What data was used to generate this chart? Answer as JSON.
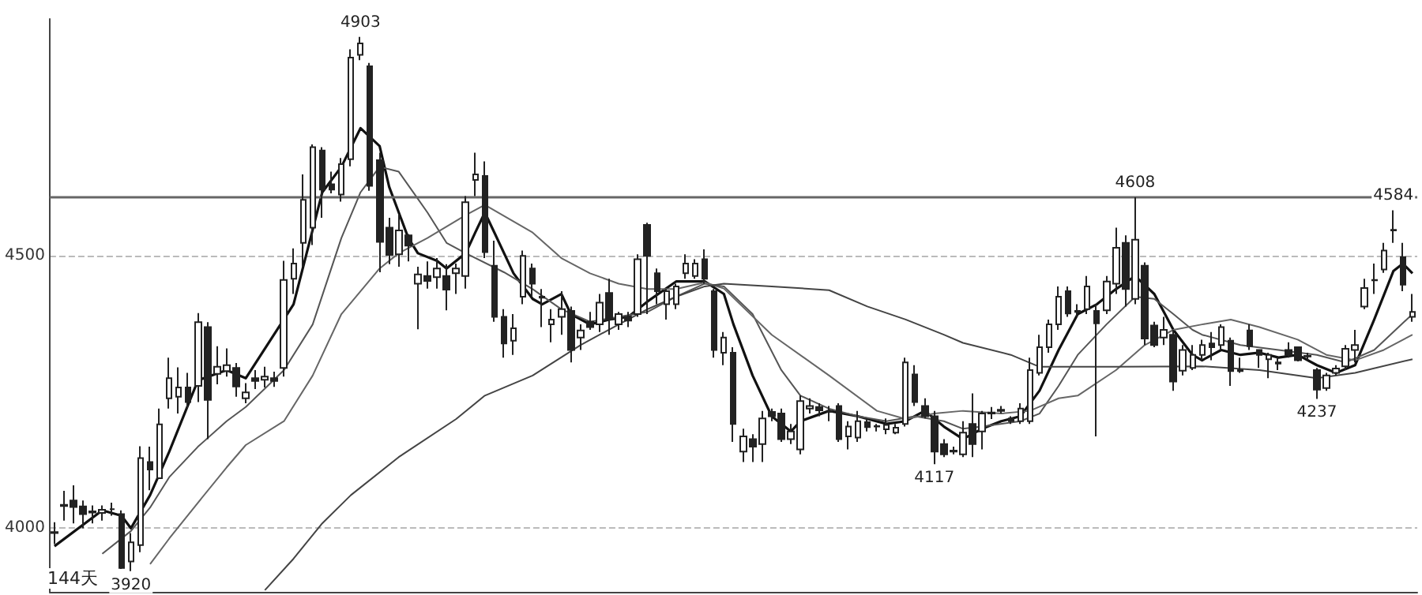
{
  "chart_data": {
    "type": "candlestick",
    "categories": [
      null,
      null,
      null,
      null,
      null,
      null,
      null,
      null,
      null,
      null,
      null,
      null,
      null,
      null,
      null,
      null,
      null,
      null,
      null,
      null,
      null,
      null,
      null,
      null,
      null,
      null,
      null,
      null,
      null,
      null,
      null,
      null,
      null,
      null,
      null,
      null,
      null,
      null,
      null,
      null,
      null,
      null,
      null,
      null,
      null,
      null,
      null,
      null,
      null,
      null,
      null,
      null,
      null,
      null,
      null,
      null,
      null,
      null,
      null,
      null,
      null,
      null,
      null,
      null,
      null,
      null,
      null,
      null,
      null,
      null,
      null,
      null,
      null,
      null,
      null,
      null,
      null,
      null,
      null,
      null,
      null,
      null,
      null,
      null,
      null,
      null,
      null,
      null,
      null,
      null,
      null,
      null,
      null,
      null,
      null,
      null,
      null,
      null,
      null,
      null,
      null,
      null,
      null,
      null,
      null,
      null,
      null,
      null,
      null,
      null,
      null,
      null,
      null,
      null,
      null,
      null,
      null,
      null,
      null,
      null,
      null,
      null,
      null,
      null,
      null,
      null,
      null,
      null,
      null,
      null,
      null,
      null,
      null,
      null,
      null,
      null,
      null,
      null,
      null,
      null,
      null,
      null,
      null
    ],
    "ohlc": [
      [
        3992,
        4010,
        3970,
        3990
      ],
      [
        4040,
        4068,
        4013,
        4042
      ],
      [
        4050,
        4078,
        4008,
        4038
      ],
      [
        4039,
        4050,
        3999,
        4025
      ],
      [
        4028,
        4041,
        4008,
        4030
      ],
      [
        4027,
        4041,
        4013,
        4033
      ],
      [
        4034,
        4046,
        4022,
        4034
      ],
      [
        4025,
        4032,
        3924,
        3926
      ],
      [
        3938,
        3990,
        3920,
        3973
      ],
      [
        3968,
        4150,
        3955,
        4128
      ],
      [
        4121,
        4149,
        4069,
        4107
      ],
      [
        4091,
        4219,
        4091,
        4190
      ],
      [
        4238,
        4313,
        4219,
        4275
      ],
      [
        4241,
        4295,
        4210,
        4258
      ],
      [
        4258,
        4285,
        4219,
        4231
      ],
      [
        4261,
        4395,
        4231,
        4378
      ],
      [
        4369,
        4378,
        4163,
        4235
      ],
      [
        4283,
        4334,
        4264,
        4296
      ],
      [
        4288,
        4330,
        4278,
        4299
      ],
      [
        4294,
        4303,
        4241,
        4260
      ],
      [
        4238,
        4266,
        4229,
        4249
      ],
      [
        4275,
        4290,
        4255,
        4270
      ],
      [
        4272,
        4296,
        4258,
        4278
      ],
      [
        4275,
        4287,
        4259,
        4270
      ],
      [
        4294,
        4491,
        4278,
        4456
      ],
      [
        4458,
        4514,
        4430,
        4486
      ],
      [
        4524,
        4650,
        4480,
        4603
      ],
      [
        4552,
        4705,
        4520,
        4700
      ],
      [
        4694,
        4700,
        4570,
        4622
      ],
      [
        4632,
        4655,
        4615,
        4622
      ],
      [
        4613,
        4680,
        4600,
        4669
      ],
      [
        4678,
        4880,
        4665,
        4865
      ],
      [
        4870,
        4903,
        4860,
        4891
      ],
      [
        4849,
        4855,
        4620,
        4629
      ],
      [
        4676,
        4690,
        4470,
        4526
      ],
      [
        4552,
        4570,
        4485,
        4502
      ],
      [
        4503,
        4577,
        4480,
        4547
      ],
      [
        4538,
        4540,
        4490,
        4519
      ],
      [
        4449,
        4480,
        4365,
        4466
      ],
      [
        4463,
        4490,
        4440,
        4454
      ],
      [
        4461,
        4496,
        4440,
        4477
      ],
      [
        4463,
        4485,
        4400,
        4438
      ],
      [
        4468,
        4486,
        4430,
        4477
      ],
      [
        4463,
        4610,
        4440,
        4599
      ],
      [
        4640,
        4690,
        4610,
        4650
      ],
      [
        4647,
        4674,
        4496,
        4507
      ],
      [
        4482,
        4528,
        4379,
        4388
      ],
      [
        4388,
        4402,
        4313,
        4339
      ],
      [
        4344,
        4393,
        4318,
        4367
      ],
      [
        4425,
        4510,
        4411,
        4500
      ],
      [
        4477,
        4486,
        4425,
        4449
      ],
      [
        4425,
        4439,
        4369,
        4423
      ],
      [
        4374,
        4402,
        4341,
        4383
      ],
      [
        4388,
        4435,
        4355,
        4402
      ],
      [
        4399,
        4407,
        4304,
        4327
      ],
      [
        4350,
        4374,
        4327,
        4363
      ],
      [
        4379,
        4397,
        4364,
        4369
      ],
      [
        4374,
        4430,
        4360,
        4414
      ],
      [
        4432,
        4458,
        4355,
        4383
      ],
      [
        4374,
        4397,
        4364,
        4393
      ],
      [
        4388,
        4397,
        4369,
        4381
      ],
      [
        4393,
        4503,
        4388,
        4494
      ],
      [
        4557,
        4561,
        4393,
        4500
      ],
      [
        4468,
        4477,
        4411,
        4435
      ],
      [
        4411,
        4439,
        4383,
        4435
      ],
      [
        4411,
        4449,
        4402,
        4444
      ],
      [
        4468,
        4503,
        4458,
        4486
      ],
      [
        4463,
        4494,
        4458,
        4486
      ],
      [
        4494,
        4512,
        4449,
        4458
      ],
      [
        4435,
        4439,
        4313,
        4327
      ],
      [
        4322,
        4360,
        4299,
        4350
      ],
      [
        4322,
        4332,
        4158,
        4191
      ],
      [
        4140,
        4182,
        4121,
        4168
      ],
      [
        4163,
        4172,
        4121,
        4149
      ],
      [
        4154,
        4215,
        4121,
        4201
      ],
      [
        4213,
        4219,
        4196,
        4205
      ],
      [
        4210,
        4219,
        4158,
        4163
      ],
      [
        4163,
        4191,
        4154,
        4177
      ],
      [
        4144,
        4243,
        4135,
        4233
      ],
      [
        4219,
        4238,
        4210,
        4224
      ],
      [
        4222,
        4229,
        4205,
        4216
      ],
      [
        4215,
        4224,
        4196,
        4213
      ],
      [
        4224,
        4229,
        4158,
        4163
      ],
      [
        4168,
        4196,
        4144,
        4186
      ],
      [
        4166,
        4215,
        4158,
        4196
      ],
      [
        4194,
        4201,
        4177,
        4185
      ],
      [
        4187,
        4191,
        4177,
        4186
      ],
      [
        4181,
        4201,
        4172,
        4189
      ],
      [
        4175,
        4191,
        4172,
        4184
      ],
      [
        4191,
        4313,
        4186,
        4304
      ],
      [
        4282,
        4299,
        4224,
        4231
      ],
      [
        4224,
        4238,
        4201,
        4205
      ],
      [
        4205,
        4215,
        4117,
        4140
      ],
      [
        4154,
        4163,
        4130,
        4135
      ],
      [
        4142,
        4149,
        4135,
        4140
      ],
      [
        4135,
        4196,
        4130,
        4175
      ],
      [
        4191,
        4247,
        4130,
        4154
      ],
      [
        4177,
        4215,
        4144,
        4210
      ],
      [
        4210,
        4222,
        4200,
        4212
      ],
      [
        4215,
        4224,
        4210,
        4217
      ],
      [
        4201,
        4205,
        4191,
        4196
      ],
      [
        4196,
        4229,
        4191,
        4219
      ],
      [
        4196,
        4313,
        4191,
        4290
      ],
      [
        4285,
        4355,
        4280,
        4332
      ],
      [
        4332,
        4383,
        4322,
        4374
      ],
      [
        4374,
        4444,
        4364,
        4425
      ],
      [
        4435,
        4444,
        4388,
        4394
      ],
      [
        4397,
        4411,
        4388,
        4399
      ],
      [
        4402,
        4463,
        4393,
        4444
      ],
      [
        4399,
        4411,
        4168,
        4376
      ],
      [
        4400,
        4463,
        4393,
        4453
      ],
      [
        4449,
        4552,
        4430,
        4515
      ],
      [
        4524,
        4538,
        4407,
        4439
      ],
      [
        4421,
        4608,
        4411,
        4530
      ],
      [
        4482,
        4488,
        4336,
        4348
      ],
      [
        4372,
        4379,
        4332,
        4336
      ],
      [
        4350,
        4388,
        4336,
        4364
      ],
      [
        4355,
        4364,
        4252,
        4269
      ],
      [
        4289,
        4336,
        4280,
        4327
      ],
      [
        4294,
        4336,
        4290,
        4318
      ],
      [
        4318,
        4346,
        4308,
        4336
      ],
      [
        4339,
        4360,
        4308,
        4332
      ],
      [
        4336,
        4374,
        4327,
        4369
      ],
      [
        4344,
        4350,
        4261,
        4288
      ],
      [
        4290,
        4313,
        4285,
        4288
      ],
      [
        4363,
        4374,
        4327,
        4334
      ],
      [
        4327,
        4327,
        4294,
        4318
      ],
      [
        4310,
        4322,
        4275,
        4318
      ],
      [
        4304,
        4313,
        4290,
        4302
      ],
      [
        4327,
        4341,
        4313,
        4318
      ],
      [
        4332,
        4332,
        4306,
        4308
      ],
      [
        4316,
        4322,
        4308,
        4315
      ],
      [
        4290,
        4294,
        4237,
        4254
      ],
      [
        4257,
        4285,
        4252,
        4280
      ],
      [
        4285,
        4299,
        4280,
        4293
      ],
      [
        4297,
        4336,
        4290,
        4329
      ],
      [
        4327,
        4364,
        4304,
        4336
      ],
      [
        4407,
        4458,
        4402,
        4441
      ],
      [
        4455,
        4486,
        4430,
        4456
      ],
      [
        4475,
        4524,
        4469,
        4510
      ],
      [
        4548,
        4584,
        4524,
        4547
      ],
      [
        4498,
        4524,
        4435,
        4447
      ],
      [
        4388,
        4430,
        4379,
        4397
      ]
    ],
    "color": "#222222",
    "series": [
      {
        "type": "line",
        "color": "#111111",
        "values": [
          3966,
          null,
          null,
          null,
          null,
          4032,
          null,
          4022,
          3999,
          null,
          4060,
          null,
          4140,
          null,
          null,
          4271,
          null,
          null,
          4290,
          null,
          4275,
          null,
          null,
          null,
          null,
          4411,
          null,
          null,
          4617,
          null,
          4664,
          null,
          4735,
          null,
          4702,
          4627,
          null,
          4533,
          4505,
          null,
          4491,
          4477,
          null,
          4505,
          4543,
          4580,
          4543,
          null,
          4468,
          null,
          4421,
          4411,
          null,
          4430,
          4393,
          null,
          4374,
          null,
          4383,
          null,
          4388,
          null,
          4416,
          null,
          null,
          4453,
          null,
          null,
          4453,
          null,
          4430,
          4374,
          null,
          4280,
          null,
          4205,
          null,
          4177,
          4196,
          null,
          null,
          4215,
          null,
          null,
          4205,
          null,
          null,
          4191,
          null,
          4196,
          null,
          4215,
          null,
          4186,
          null,
          4163,
          null,
          4182,
          null,
          4196,
          null,
          4205,
          null,
          4252,
          null,
          4327,
          null,
          4393,
          null,
          4411,
          null,
          4439,
          null,
          4463,
          null,
          4430,
          null,
          4364,
          null,
          4318,
          4308,
          null,
          4327,
          null,
          4318,
          null,
          4322,
          null,
          4313,
          null,
          4318,
          null,
          4299,
          null,
          4285,
          null,
          4299,
          null,
          4383,
          null,
          4472,
          4486,
          4468
        ]
      },
      {
        "type": "line",
        "color": "#555555",
        "values": [
          null,
          null,
          null,
          null,
          null,
          3952,
          null,
          null,
          3994,
          null,
          4037,
          null,
          4093,
          null,
          null,
          4149,
          null,
          null,
          4196,
          null,
          4222,
          null,
          null,
          null,
          4290,
          null,
          null,
          4374,
          null,
          null,
          4533,
          null,
          4617,
          null,
          4664,
          null,
          4655,
          null,
          null,
          4580,
          null,
          4524,
          null,
          4505,
          null,
          null,
          null,
          4470,
          null,
          null,
          4439,
          null,
          null,
          4402,
          null,
          null,
          4379,
          null,
          null,
          4388,
          null,
          null,
          4397,
          null,
          null,
          4425,
          null,
          null,
          4449,
          null,
          4444,
          null,
          null,
          4393,
          null,
          null,
          4290,
          null,
          4243,
          null,
          null,
          4219,
          null,
          null,
          4205,
          null,
          null,
          4196,
          null,
          null,
          4205,
          null,
          null,
          4196,
          null,
          4182,
          null,
          4186,
          null,
          null,
          null,
          4196,
          null,
          4210,
          null,
          4261,
          null,
          4318,
          null,
          null,
          4374,
          null,
          null,
          4425,
          null,
          4421,
          null,
          4393,
          null,
          4364,
          4355,
          null,
          null,
          null,
          4336,
          null,
          null,
          null,
          4327,
          null,
          null,
          null,
          4318,
          null,
          null,
          4304,
          null,
          null,
          4327,
          null,
          null,
          null,
          4393
        ]
      },
      {
        "type": "line",
        "color": "#666666",
        "values": [
          null,
          null,
          null,
          null,
          null,
          null,
          null,
          null,
          null,
          null,
          3933,
          null,
          3980,
          null,
          null,
          4046,
          null,
          null,
          4111,
          null,
          4152,
          null,
          null,
          null,
          4196,
          null,
          null,
          4280,
          null,
          null,
          4393,
          null,
          null,
          null,
          4477,
          null,
          4505,
          null,
          null,
          4533,
          null,
          null,
          null,
          4575,
          null,
          4594,
          null,
          null,
          null,
          null,
          4543,
          null,
          null,
          4496,
          null,
          null,
          4468,
          null,
          null,
          4449,
          null,
          null,
          4439,
          null,
          null,
          4439,
          null,
          null,
          4451,
          null,
          4440,
          null,
          null,
          null,
          null,
          4355,
          null,
          null,
          null,
          null,
          null,
          4280,
          null,
          null,
          null,
          null,
          4215,
          null,
          null,
          4200,
          null,
          null,
          4210,
          null,
          null,
          4215,
          null,
          null,
          null,
          4210,
          null,
          null,
          4215,
          null,
          null,
          4238,
          null,
          4243,
          null,
          null,
          null,
          4290,
          null,
          null,
          4336,
          null,
          null,
          4364,
          null,
          null,
          4374,
          null,
          null,
          4383,
          null,
          null,
          4369,
          null,
          null,
          null,
          4346,
          null,
          null,
          4318,
          null,
          null,
          4308,
          null,
          null,
          4327,
          null,
          null,
          4355
        ]
      },
      {
        "type": "line",
        "color": "#444444",
        "values": [
          null,
          null,
          null,
          null,
          null,
          null,
          null,
          null,
          null,
          null,
          null,
          null,
          null,
          null,
          null,
          null,
          null,
          null,
          null,
          null,
          null,
          null,
          3885,
          null,
          null,
          3943,
          null,
          null,
          4008,
          null,
          null,
          4060,
          null,
          null,
          null,
          null,
          4130,
          null,
          null,
          null,
          null,
          null,
          4200,
          null,
          null,
          4243,
          null,
          null,
          null,
          null,
          4280,
          null,
          null,
          null,
          null,
          4336,
          null,
          null,
          null,
          4374,
          null,
          null,
          4402,
          null,
          null,
          4425,
          null,
          null,
          4444,
          null,
          4449,
          null,
          null,
          null,
          null,
          4444,
          null,
          null,
          null,
          null,
          null,
          4437,
          null,
          null,
          null,
          4407,
          null,
          null,
          null,
          4383,
          null,
          null,
          null,
          4355,
          null,
          4340,
          null,
          null,
          null,
          null,
          4318,
          null,
          null,
          4296,
          null,
          null,
          null,
          null,
          null,
          null,
          null,
          4296,
          null,
          null,
          null,
          null,
          null,
          null,
          null,
          null,
          4297,
          null,
          null,
          null,
          null,
          null,
          4290,
          null,
          null,
          null,
          null,
          null,
          4275,
          null,
          null,
          null,
          4285,
          null,
          null,
          null,
          null,
          null,
          4310
        ]
      }
    ],
    "ylim": [
      3882,
      4936
    ],
    "yticks": [
      4000,
      4500
    ],
    "grid": "y",
    "tick_labels": "y",
    "ref_lines": [
      {
        "axis": "y",
        "value": 4608,
        "color": "#666666"
      }
    ],
    "annotations": [
      {
        "text": "4903",
        "y": 4903
      },
      {
        "text": "3920",
        "y": 3920
      },
      {
        "text": "4117",
        "y": 4117
      },
      {
        "text": "4608",
        "y": 4608
      },
      {
        "text": "4237",
        "y": 4237
      },
      {
        "text": "4584",
        "y": 4584
      },
      "144天"
    ]
  }
}
